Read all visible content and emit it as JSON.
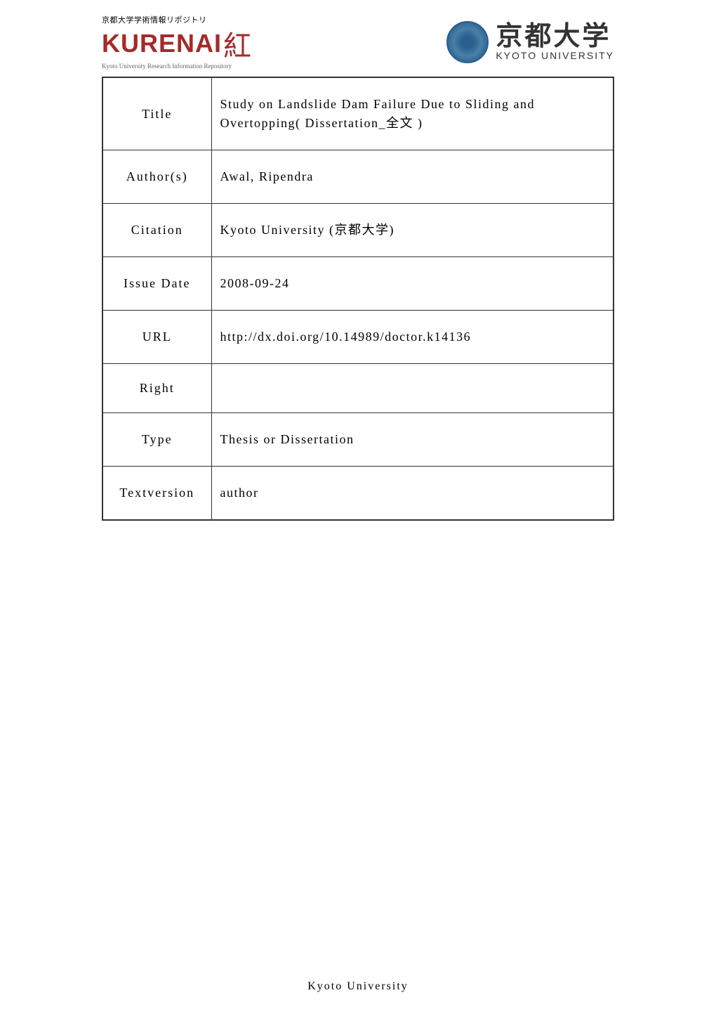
{
  "header": {
    "kurenai": {
      "top_text": "京都大学学術情報リポジトリ",
      "main_text": "KURENAI",
      "kanji": "紅",
      "bottom_text": "Kyoto University Research Information Repository"
    },
    "kyoto": {
      "kanji": "京都大学",
      "english": "KYOTO UNIVERSITY"
    }
  },
  "metadata": {
    "rows": [
      {
        "label": "Title",
        "value": "Study on Landslide Dam Failure Due to Sliding and Overtopping( Dissertation_全文 )"
      },
      {
        "label": "Author(s)",
        "value": "Awal, Ripendra"
      },
      {
        "label": "Citation",
        "value": "Kyoto University (京都大学)"
      },
      {
        "label": "Issue Date",
        "value": "2008-09-24"
      },
      {
        "label": "URL",
        "value": "http://dx.doi.org/10.14989/doctor.k14136"
      },
      {
        "label": "Right",
        "value": ""
      },
      {
        "label": "Type",
        "value": "Thesis or Dissertation"
      },
      {
        "label": "Textversion",
        "value": "author"
      }
    ]
  },
  "footer": {
    "text": "Kyoto University"
  },
  "colors": {
    "kurenai_red": "#a52a2a",
    "kyoto_blue": "#2a5f8f",
    "border": "#333333",
    "text": "#000000",
    "background": "#ffffff"
  }
}
